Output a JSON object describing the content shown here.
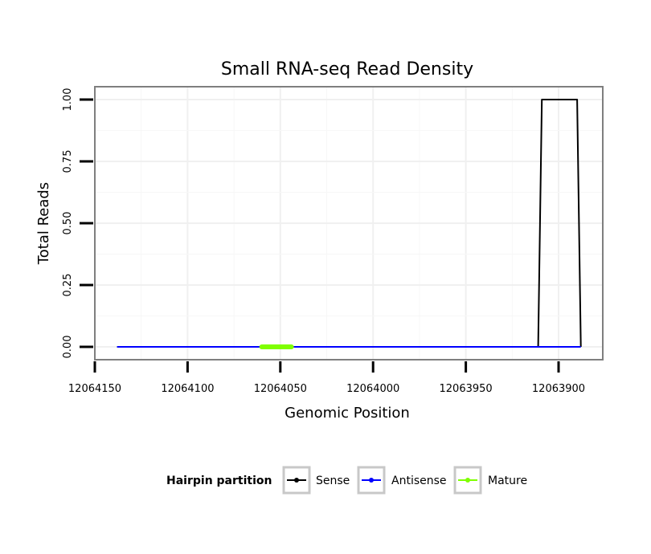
{
  "chart_data": {
    "type": "line",
    "title": "Small RNA-seq Read Density",
    "xlabel": "Genomic Position",
    "ylabel": "Total Reads",
    "x_reversed": true,
    "xlim": [
      12064150,
      12063875
    ],
    "ylim": [
      0,
      1.0
    ],
    "xticks": [
      12064150,
      12064100,
      12064050,
      12064000,
      12063950,
      12063900
    ],
    "xtick_labels": [
      "12064150",
      "12064100",
      "12064050",
      "12064000",
      "12063950",
      "12063900"
    ],
    "yticks": [
      0,
      0.25,
      0.5,
      0.75,
      1.0
    ],
    "ytick_labels": [
      "0.00",
      "0.25",
      "0.50",
      "0.75",
      "1.00"
    ],
    "grid": true,
    "legend_position": "bottom",
    "legend_title": "Hairpin partition",
    "series": [
      {
        "name": "Sense",
        "color": "#000000",
        "points": [
          [
            12064138,
            0
          ],
          [
            12063911,
            0
          ],
          [
            12063909,
            1
          ],
          [
            12063890,
            1
          ],
          [
            12063888,
            0
          ]
        ]
      },
      {
        "name": "Antisense",
        "color": "#0000ff",
        "points": [
          [
            12064138,
            0
          ],
          [
            12063888,
            0
          ]
        ]
      },
      {
        "name": "Mature",
        "color": "#7fff00",
        "points": [
          [
            12064060,
            0
          ],
          [
            12064044,
            0
          ]
        ]
      }
    ]
  }
}
